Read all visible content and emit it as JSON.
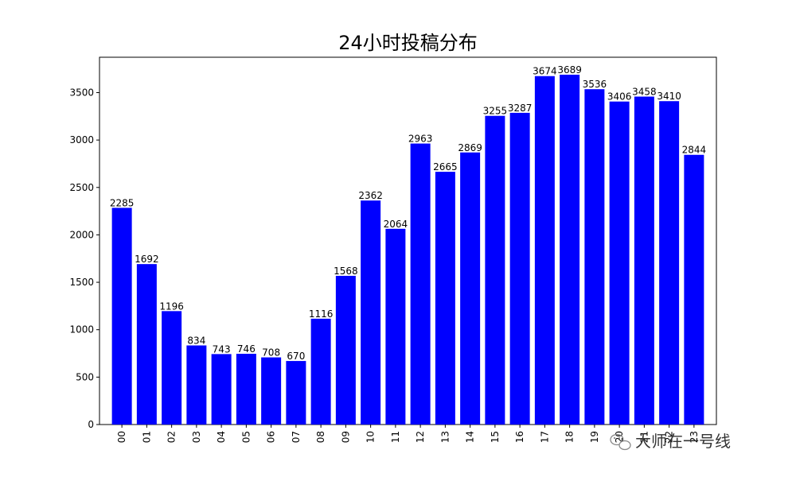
{
  "chart_data": {
    "type": "bar",
    "title": "24小时投稿分布",
    "xlabel": "",
    "ylabel": "",
    "categories": [
      "00",
      "01",
      "02",
      "03",
      "04",
      "05",
      "06",
      "07",
      "08",
      "09",
      "10",
      "11",
      "12",
      "13",
      "14",
      "15",
      "16",
      "17",
      "18",
      "19",
      "20",
      "21",
      "22",
      "23"
    ],
    "values": [
      2285,
      1692,
      1196,
      834,
      743,
      746,
      708,
      670,
      1116,
      1568,
      2362,
      2064,
      2963,
      2665,
      2869,
      3255,
      3287,
      3674,
      3689,
      3536,
      3406,
      3458,
      3410,
      2844
    ],
    "ylim": [
      0,
      3873
    ],
    "yticks": [
      0,
      500,
      1000,
      1500,
      2000,
      2500,
      3000,
      3500
    ],
    "bar_color": "#0000ff",
    "grid": false,
    "legend": "none",
    "x_tick_rotation": "vertical"
  },
  "watermark": {
    "text": "大师在一号线",
    "icon": "wechat-icon"
  }
}
